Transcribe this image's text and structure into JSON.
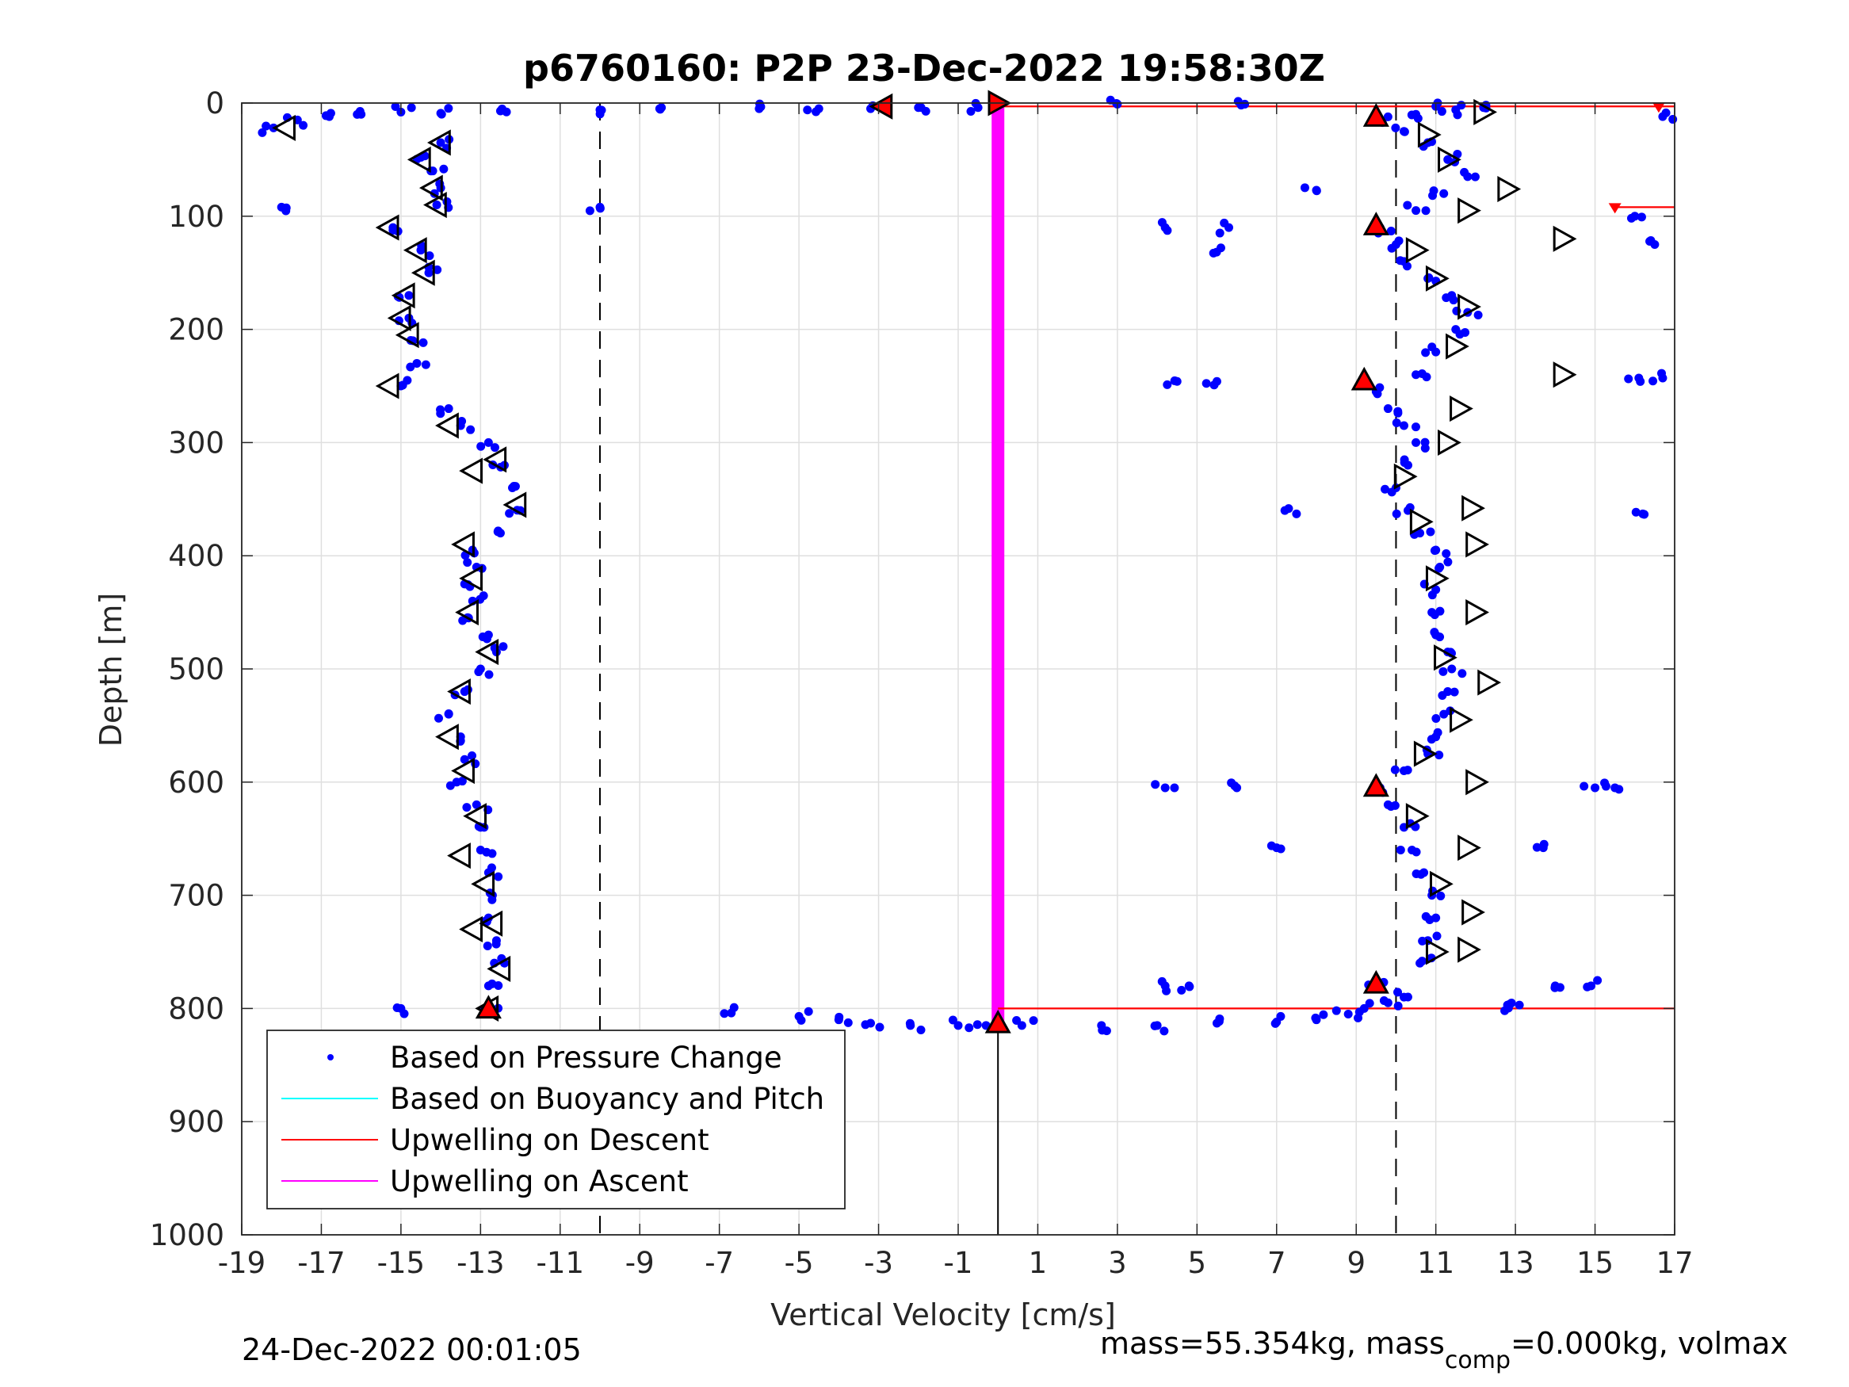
{
  "chart_data": {
    "type": "scatter",
    "title": "p6760160: P2P 23-Dec-2022 19:58:30Z",
    "xlabel": "Vertical Velocity [cm/s]",
    "ylabel": "Depth [m]",
    "xlim": [
      -19,
      17
    ],
    "ylim": [
      0,
      1000
    ],
    "y_reversed": true,
    "x_ticks": [
      "-19",
      "-17",
      "-15",
      "-13",
      "-11",
      "-9",
      "-7",
      "-5",
      "-3",
      "-1",
      "1",
      "3",
      "5",
      "7",
      "9",
      "11",
      "13",
      "15",
      "17"
    ],
    "y_ticks": [
      "0",
      "100",
      "200",
      "300",
      "400",
      "500",
      "600",
      "700",
      "800",
      "900",
      "1000"
    ],
    "grid": true,
    "legend_position": "bottom-left",
    "legend": [
      {
        "label": "Based on Pressure Change",
        "color": "#0000ff",
        "style": "dot"
      },
      {
        "label": "Based on Buoyancy and Pitch",
        "color": "#00ffff",
        "style": "line"
      },
      {
        "label": "Upwelling on Descent",
        "color": "#ff0000",
        "style": "line"
      },
      {
        "label": "Upwelling on Ascent",
        "color": "#ff00ff",
        "style": "line"
      }
    ],
    "reference_lines": {
      "dashed_x": [
        -10,
        10
      ]
    },
    "pressure_change_descent": [
      [
        -18.2,
        22
      ],
      [
        -17.6,
        15
      ],
      [
        -16.8,
        12
      ],
      [
        -16.0,
        10
      ],
      [
        -15.0,
        8
      ],
      [
        -14.0,
        9
      ],
      [
        -12.5,
        7
      ],
      [
        -10.0,
        6
      ],
      [
        -8.5,
        5
      ],
      [
        -6.0,
        5
      ],
      [
        -4.5,
        5
      ],
      [
        -3.2,
        5
      ],
      [
        -2.0,
        4
      ],
      [
        -0.5,
        4
      ],
      [
        -14.0,
        35
      ],
      [
        -14.5,
        48
      ],
      [
        -14.2,
        60
      ],
      [
        -14.0,
        75
      ],
      [
        -14.1,
        90
      ],
      [
        -15.2,
        110
      ],
      [
        -14.5,
        130
      ],
      [
        -14.3,
        150
      ],
      [
        -14.8,
        170
      ],
      [
        -14.8,
        190
      ],
      [
        -14.7,
        210
      ],
      [
        -14.6,
        230
      ],
      [
        -15.0,
        250
      ],
      [
        -13.8,
        270
      ],
      [
        -13.5,
        285
      ],
      [
        -12.8,
        300
      ],
      [
        -12.4,
        320
      ],
      [
        -12.2,
        340
      ],
      [
        -12.0,
        360
      ],
      [
        -12.5,
        380
      ],
      [
        -13.2,
        395
      ],
      [
        -13.1,
        410
      ],
      [
        -13.4,
        425
      ],
      [
        -13.2,
        440
      ],
      [
        -13.3,
        455
      ],
      [
        -12.8,
        470
      ],
      [
        -12.6,
        485
      ],
      [
        -13.0,
        500
      ],
      [
        -13.4,
        520
      ],
      [
        -13.8,
        540
      ],
      [
        -13.5,
        560
      ],
      [
        -13.4,
        580
      ],
      [
        -13.6,
        600
      ],
      [
        -13.1,
        620
      ],
      [
        -13.0,
        640
      ],
      [
        -13.0,
        660
      ],
      [
        -12.8,
        680
      ],
      [
        -12.7,
        700
      ],
      [
        -12.8,
        720
      ],
      [
        -12.6,
        740
      ],
      [
        -12.4,
        760
      ],
      [
        -12.8,
        780
      ],
      [
        -12.8,
        800
      ],
      [
        -15.0,
        800
      ],
      [
        -6.7,
        804
      ],
      [
        -5.0,
        807
      ],
      [
        -4.0,
        810
      ],
      [
        -3.2,
        813
      ],
      [
        -2.2,
        815
      ],
      [
        -1.0,
        815
      ],
      [
        -0.3,
        815
      ],
      [
        -18.0,
        92
      ],
      [
        -10.0,
        92
      ]
    ],
    "pressure_change_ascent": [
      [
        0.6,
        815
      ],
      [
        2.6,
        815
      ],
      [
        4.0,
        815
      ],
      [
        5.5,
        813
      ],
      [
        7.0,
        812
      ],
      [
        8.0,
        810
      ],
      [
        8.8,
        805
      ],
      [
        9.2,
        800
      ],
      [
        9.8,
        795
      ],
      [
        10.2,
        790
      ],
      [
        9.5,
        780
      ],
      [
        10.6,
        760
      ],
      [
        10.8,
        740
      ],
      [
        11.0,
        720
      ],
      [
        10.9,
        700
      ],
      [
        10.7,
        680
      ],
      [
        10.4,
        660
      ],
      [
        10.2,
        640
      ],
      [
        9.8,
        620
      ],
      [
        9.6,
        605
      ],
      [
        10.2,
        590
      ],
      [
        10.8,
        575
      ],
      [
        11.0,
        560
      ],
      [
        11.2,
        540
      ],
      [
        11.3,
        520
      ],
      [
        11.4,
        500
      ],
      [
        11.3,
        485
      ],
      [
        11.0,
        470
      ],
      [
        10.9,
        450
      ],
      [
        11.0,
        430
      ],
      [
        11.1,
        410
      ],
      [
        11.0,
        395
      ],
      [
        10.6,
        380
      ],
      [
        10.3,
        360
      ],
      [
        10.0,
        340
      ],
      [
        10.3,
        320
      ],
      [
        10.5,
        300
      ],
      [
        10.2,
        285
      ],
      [
        9.8,
        270
      ],
      [
        9.5,
        255
      ],
      [
        10.5,
        240
      ],
      [
        11.0,
        220
      ],
      [
        11.5,
        200
      ],
      [
        11.8,
        185
      ],
      [
        11.4,
        170
      ],
      [
        10.8,
        155
      ],
      [
        10.2,
        140
      ],
      [
        10.0,
        125
      ],
      [
        9.6,
        110
      ],
      [
        10.5,
        95
      ],
      [
        11.2,
        80
      ],
      [
        11.8,
        65
      ],
      [
        11.3,
        50
      ],
      [
        10.8,
        35
      ],
      [
        10.2,
        25
      ],
      [
        9.5,
        15
      ],
      [
        10.5,
        10
      ],
      [
        11.5,
        6
      ],
      [
        12.2,
        4
      ],
      [
        11.0,
        3
      ],
      [
        4.2,
        110
      ],
      [
        5.8,
        110
      ],
      [
        5.6,
        128
      ],
      [
        4.5,
        246
      ],
      [
        5.5,
        246
      ],
      [
        4.2,
        605
      ],
      [
        6.0,
        605
      ],
      [
        7.0,
        658
      ],
      [
        7.5,
        363
      ],
      [
        8.0,
        77
      ],
      [
        4.2,
        780
      ],
      [
        4.8,
        780
      ],
      [
        16.0,
        100
      ],
      [
        16.5,
        125
      ],
      [
        16.1,
        243
      ],
      [
        16.7,
        243
      ],
      [
        15.0,
        605
      ],
      [
        15.5,
        605
      ],
      [
        16.2,
        363
      ],
      [
        13.7,
        658
      ],
      [
        14.0,
        780
      ],
      [
        14.9,
        780
      ],
      [
        13.1,
        797
      ],
      [
        12.8,
        797
      ],
      [
        16.7,
        12
      ],
      [
        3.0,
        1
      ],
      [
        6.2,
        1
      ]
    ],
    "pitch_descent_markers": [
      [
        -17.9,
        22
      ],
      [
        -14.0,
        35
      ],
      [
        -14.5,
        50
      ],
      [
        -14.2,
        75
      ],
      [
        -14.1,
        90
      ],
      [
        -15.3,
        110
      ],
      [
        -14.6,
        130
      ],
      [
        -14.4,
        150
      ],
      [
        -14.9,
        170
      ],
      [
        -15.0,
        190
      ],
      [
        -14.8,
        205
      ],
      [
        -15.3,
        250
      ],
      [
        -13.8,
        285
      ],
      [
        -12.6,
        315
      ],
      [
        -13.2,
        325
      ],
      [
        -12.1,
        355
      ],
      [
        -13.4,
        390
      ],
      [
        -13.2,
        420
      ],
      [
        -13.3,
        450
      ],
      [
        -12.8,
        485
      ],
      [
        -13.5,
        520
      ],
      [
        -13.8,
        560
      ],
      [
        -13.4,
        590
      ],
      [
        -13.1,
        630
      ],
      [
        -13.5,
        665
      ],
      [
        -12.9,
        690
      ],
      [
        -12.7,
        725
      ],
      [
        -13.2,
        730
      ],
      [
        -12.5,
        765
      ],
      [
        -12.8,
        800
      ]
    ],
    "pitch_ascent_markers": [
      [
        12.2,
        8
      ],
      [
        10.8,
        28
      ],
      [
        11.3,
        50
      ],
      [
        12.8,
        76
      ],
      [
        11.8,
        95
      ],
      [
        14.2,
        120
      ],
      [
        10.5,
        130
      ],
      [
        11.0,
        155
      ],
      [
        11.8,
        180
      ],
      [
        11.5,
        215
      ],
      [
        14.2,
        240
      ],
      [
        11.6,
        270
      ],
      [
        11.3,
        300
      ],
      [
        10.2,
        330
      ],
      [
        11.9,
        358
      ],
      [
        10.6,
        370
      ],
      [
        12.0,
        390
      ],
      [
        11.0,
        420
      ],
      [
        12.0,
        450
      ],
      [
        11.2,
        490
      ],
      [
        12.3,
        512
      ],
      [
        11.6,
        545
      ],
      [
        10.7,
        575
      ],
      [
        12.0,
        600
      ],
      [
        10.5,
        630
      ],
      [
        11.8,
        658
      ],
      [
        11.1,
        690
      ],
      [
        11.9,
        715
      ],
      [
        11.0,
        750
      ],
      [
        11.8,
        748
      ]
    ],
    "red_markers": [
      {
        "x": -2.9,
        "y": 3,
        "dir": "left"
      },
      {
        "x": 0,
        "y": 0,
        "dir": "right"
      },
      {
        "x": 9.5,
        "y": 12,
        "dir": "up"
      },
      {
        "x": 9.5,
        "y": 108,
        "dir": "up"
      },
      {
        "x": 9.2,
        "y": 245,
        "dir": "up"
      },
      {
        "x": 9.5,
        "y": 604,
        "dir": "up"
      },
      {
        "x": 9.5,
        "y": 778,
        "dir": "up"
      },
      {
        "x": -12.8,
        "y": 800,
        "dir": "up"
      },
      {
        "x": 0,
        "y": 813,
        "dir": "up"
      }
    ],
    "upwelling_ascent_segment": {
      "x": 0,
      "y_from": 0,
      "y_to": 813
    },
    "upwelling_descent_segments": [
      {
        "y": 3,
        "x_from": 0,
        "x_to": 17
      },
      {
        "y": 800,
        "x_from": 0,
        "x_to": 17
      },
      {
        "y": 92,
        "x_from": 15.5,
        "x_to": 17
      }
    ],
    "vertical_solid_segment": {
      "x": 0,
      "y_from": 813,
      "y_to": 1000
    }
  },
  "footer": {
    "timestamp": "24-Dec-2022 00:01:05",
    "mass_text": "mass=55.354kg, mass",
    "mass_sub": "comp",
    "mass_tail": "=0.000kg, volmax"
  }
}
